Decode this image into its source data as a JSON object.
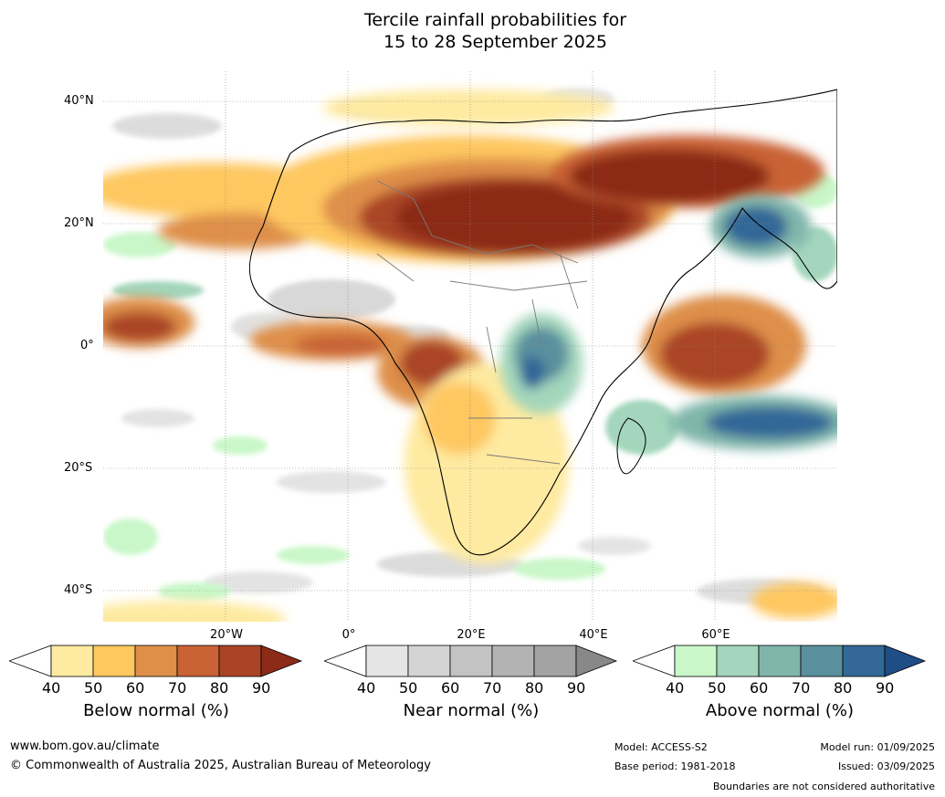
{
  "title": {
    "line1": "Tercile rainfall probabilities for",
    "line2": "15 to 28 September 2025"
  },
  "map": {
    "lat_labels": [
      "40°N",
      "20°N",
      "0°",
      "20°S",
      "40°S"
    ],
    "lon_labels": [
      "20°W",
      "0°",
      "20°E",
      "40°E",
      "60°E"
    ]
  },
  "legend": {
    "ticks": [
      "40",
      "50",
      "60",
      "70",
      "80",
      "90"
    ],
    "below": {
      "title": "Below normal (%)",
      "colors": [
        "#ffffff",
        "#feeaa0",
        "#fec760",
        "#de8f49",
        "#c96234",
        "#aa4426",
        "#8c2b18"
      ]
    },
    "near": {
      "title": "Near normal (%)",
      "colors": [
        "#ffffff",
        "#e5e5e5",
        "#d4d4d4",
        "#c3c3c3",
        "#b3b3b3",
        "#a3a3a3",
        "#888888"
      ]
    },
    "above": {
      "title": "Above normal (%)",
      "colors": [
        "#ffffff",
        "#c9f7c9",
        "#a3d6bc",
        "#80b6aa",
        "#5a909e",
        "#336897",
        "#1f4e86"
      ]
    }
  },
  "footer": {
    "url": "www.bom.gov.au/climate",
    "copyright": "© Commonwealth of Australia 2025, Australian Bureau of Meteorology",
    "model": "Model: ACCESS-S2",
    "base_period": "Base period: 1981-2018",
    "model_run": "Model run: 01/09/2025",
    "issued": "Issued: 03/09/2025",
    "disclaimer": "Boundaries are not considered authoritative"
  }
}
